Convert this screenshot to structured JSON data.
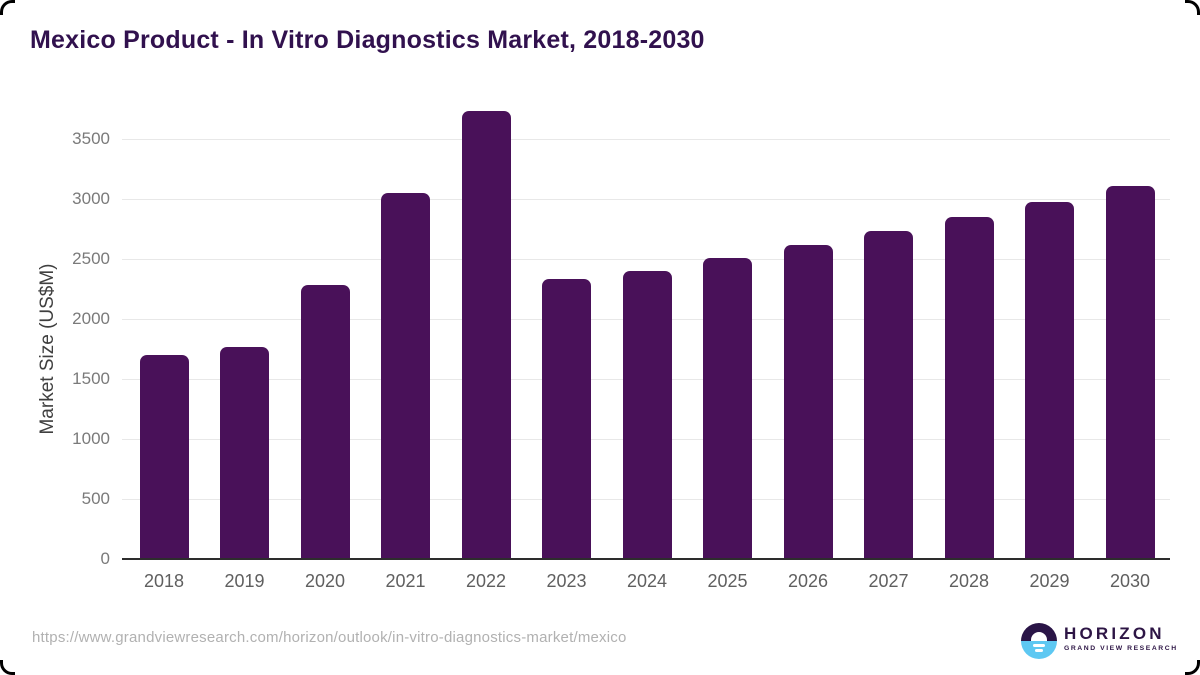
{
  "header": {
    "title": "Mexico Product - In Vitro Diagnostics Market, 2018-2030"
  },
  "footer": {
    "source_url": "https://www.grandviewresearch.com/horizon/outlook/in-vitro-diagnostics-market/mexico",
    "logo": {
      "brand": "HORIZON",
      "tagline": "GRAND VIEW RESEARCH",
      "icon": "sun-over-horizon-icon",
      "icon_top_color": "#2a1547",
      "icon_bottom_color": "#5ec8f2",
      "text_color": "#2d1545"
    }
  },
  "chart_data": {
    "type": "bar",
    "title": "Mexico Product - In Vitro Diagnostics Market, 2018-2030",
    "categories": [
      "2018",
      "2019",
      "2020",
      "2021",
      "2022",
      "2023",
      "2024",
      "2025",
      "2026",
      "2027",
      "2028",
      "2029",
      "2030"
    ],
    "values": [
      1700,
      1765,
      2280,
      3050,
      3730,
      2330,
      2400,
      2510,
      2620,
      2735,
      2850,
      2975,
      3110
    ],
    "xlabel": "",
    "ylabel": "Market Size (US$M)",
    "ylim": [
      0,
      3500
    ],
    "yticks": [
      0,
      500,
      1000,
      1500,
      2000,
      2500,
      3000,
      3500
    ],
    "grid": true,
    "legend": false,
    "bar_color": "#491159",
    "gridline_color": "#e8e8e8",
    "axis_line_color": "#2d2d2d",
    "y_tick_label_color": "#7a7a7a",
    "x_tick_label_color": "#5f5f5f"
  }
}
